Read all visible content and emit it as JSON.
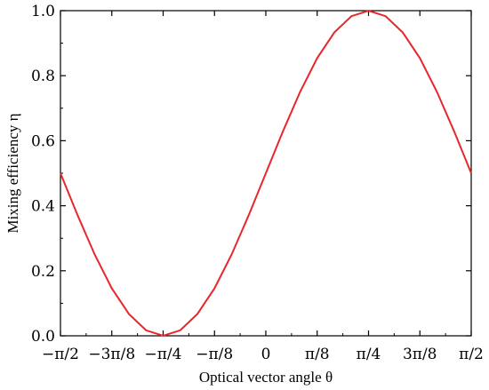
{
  "chart_data": {
    "type": "line",
    "title": "",
    "xlabel": "Optical vector angle θ",
    "ylabel": "Mixing efficiency η",
    "xlim": [
      -1.5708,
      1.5708
    ],
    "ylim": [
      0.0,
      1.0
    ],
    "x_ticks": [
      {
        "value": -1.5708,
        "label": "−π/2"
      },
      {
        "value": -1.1781,
        "label": "−3π/8"
      },
      {
        "value": -0.7854,
        "label": "−π/4"
      },
      {
        "value": -0.3927,
        "label": "−π/8"
      },
      {
        "value": 0.0,
        "label": "0"
      },
      {
        "value": 0.3927,
        "label": "π/8"
      },
      {
        "value": 0.7854,
        "label": "π/4"
      },
      {
        "value": 1.1781,
        "label": "3π/8"
      },
      {
        "value": 1.5708,
        "label": "π/2"
      }
    ],
    "y_ticks": [
      {
        "value": 0.0,
        "label": "0.0"
      },
      {
        "value": 0.2,
        "label": "0.2"
      },
      {
        "value": 0.4,
        "label": "0.4"
      },
      {
        "value": 0.6,
        "label": "0.6"
      },
      {
        "value": 0.8,
        "label": "0.8"
      },
      {
        "value": 1.0,
        "label": "1.0"
      }
    ],
    "grid": false,
    "series": [
      {
        "color": "#e8262b",
        "x": [
          -1.5708,
          -1.4399,
          -1.309,
          -1.1781,
          -1.0472,
          -0.9163,
          -0.7854,
          -0.6545,
          -0.5236,
          -0.3927,
          -0.2618,
          -0.1309,
          0.0,
          0.1309,
          0.2618,
          0.3927,
          0.5236,
          0.6545,
          0.7854,
          0.9163,
          1.0472,
          1.1781,
          1.309,
          1.4399,
          1.5708
        ],
        "y": [
          0.5,
          0.371,
          0.25,
          0.146,
          0.067,
          0.017,
          0.0,
          0.017,
          0.067,
          0.146,
          0.25,
          0.371,
          0.5,
          0.629,
          0.75,
          0.854,
          0.933,
          0.983,
          1.0,
          0.983,
          0.933,
          0.854,
          0.75,
          0.629,
          0.5
        ]
      }
    ]
  }
}
